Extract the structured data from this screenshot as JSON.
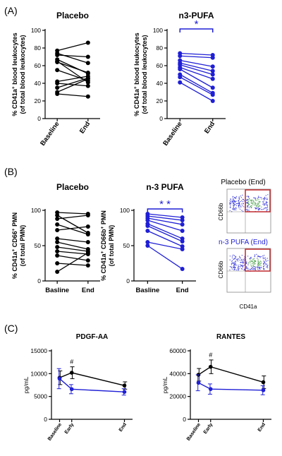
{
  "panels": {
    "A": "(A)",
    "B": "(B)",
    "C": "(C)"
  },
  "chart_data": [
    {
      "id": "A1",
      "type": "line",
      "title": "Placebo",
      "ylabel_parts": [
        "% CD41a",
        "+",
        " blood leukocytes"
      ],
      "ylabel2": "(of total blood leukocytes)",
      "categories": [
        "Baseline",
        "End"
      ],
      "ylim": [
        0,
        100
      ],
      "yticks": [
        0,
        20,
        40,
        60,
        80,
        100
      ],
      "color": "#000000",
      "pairs": [
        [
          77,
          86
        ],
        [
          74,
          63
        ],
        [
          72,
          70
        ],
        [
          67,
          51
        ],
        [
          65,
          41
        ],
        [
          64,
          52
        ],
        [
          55,
          43
        ],
        [
          42,
          48
        ],
        [
          40,
          37
        ],
        [
          35,
          46
        ],
        [
          30,
          45
        ],
        [
          28,
          25
        ]
      ]
    },
    {
      "id": "A2",
      "type": "line",
      "title": "n3-PUFA",
      "ylabel_parts": [
        "% CD41a",
        "+",
        " blood leukocytes"
      ],
      "ylabel2": "(of total blood leukocytes)",
      "categories": [
        "Baseline",
        "End"
      ],
      "ylim": [
        0,
        100
      ],
      "yticks": [
        0,
        20,
        40,
        60,
        80,
        100
      ],
      "color": "#1f1fd6",
      "annotation": "*",
      "pairs": [
        [
          74,
          72
        ],
        [
          71,
          69
        ],
        [
          66,
          59
        ],
        [
          63,
          54
        ],
        [
          61,
          50
        ],
        [
          58,
          45
        ],
        [
          56,
          35
        ],
        [
          50,
          29
        ],
        [
          47,
          27
        ],
        [
          41,
          20
        ]
      ]
    },
    {
      "id": "B1",
      "type": "line",
      "title": "Placebo",
      "ylabel_parts": [
        "% CD41a",
        "+",
        " CD66",
        "+",
        " PMN"
      ],
      "ylabel2": "(of total PMN)",
      "categories": [
        "Basline",
        "End"
      ],
      "ylim": [
        0,
        100
      ],
      "yticks": [
        0,
        50,
        100
      ],
      "color": "#000000",
      "pairs": [
        [
          97,
          95
        ],
        [
          93,
          68
        ],
        [
          88,
          93
        ],
        [
          80,
          66
        ],
        [
          72,
          77
        ],
        [
          60,
          55
        ],
        [
          55,
          45
        ],
        [
          48,
          42
        ],
        [
          42,
          38
        ],
        [
          36,
          29
        ],
        [
          25,
          22
        ],
        [
          13,
          40
        ]
      ]
    },
    {
      "id": "B2",
      "type": "line",
      "title": "n-3  PUFA",
      "ylabel_parts": [
        "% CD41a",
        "+",
        " CD66b",
        "+",
        " PMN"
      ],
      "ylabel2": "(of total PMN)",
      "categories": [
        "Basline",
        "End"
      ],
      "ylim": [
        0,
        100
      ],
      "yticks": [
        0,
        50,
        100
      ],
      "color": "#1f1fd6",
      "annotation": "* *",
      "pairs": [
        [
          95,
          90
        ],
        [
          92,
          86
        ],
        [
          89,
          80
        ],
        [
          86,
          71
        ],
        [
          81,
          60
        ],
        [
          78,
          56
        ],
        [
          71,
          49
        ],
        [
          55,
          45
        ],
        [
          50,
          17
        ]
      ]
    },
    {
      "id": "C1",
      "type": "line",
      "title": "PDGF-AA",
      "ylabel": "pg/mL",
      "categories": [
        "Baseline",
        "Early",
        "End"
      ],
      "ylim": [
        0,
        15000
      ],
      "yticks": [
        0,
        5000,
        10000,
        15000
      ],
      "annotation": "#",
      "series": [
        {
          "color": "#000000",
          "values": [
            9100,
            10200,
            7400
          ],
          "err": [
            1500,
            1300,
            800
          ]
        },
        {
          "color": "#1f1fd6",
          "values": [
            8900,
            6600,
            6000
          ],
          "err": [
            2200,
            1000,
            700
          ]
        }
      ]
    },
    {
      "id": "C2",
      "type": "line",
      "title": "RANTES",
      "ylabel": "pg/mL",
      "categories": [
        "Baseline",
        "Early",
        "End"
      ],
      "ylim": [
        0,
        60000
      ],
      "yticks": [
        0,
        20000,
        40000,
        60000
      ],
      "annotation": "#",
      "series": [
        {
          "color": "#000000",
          "values": [
            39000,
            46000,
            32500
          ],
          "err": [
            5500,
            6000,
            5500
          ]
        },
        {
          "color": "#1f1fd6",
          "values": [
            32000,
            26500,
            25500
          ],
          "err": [
            7000,
            4500,
            4000
          ]
        }
      ]
    }
  ],
  "flow": {
    "title1": "Placebo (End)",
    "title2": "n-3 PUFA (End)",
    "ylabel": "CD66b",
    "xlabel": "CD41a",
    "color1": "#333333",
    "color2": "#1f1fd6"
  }
}
